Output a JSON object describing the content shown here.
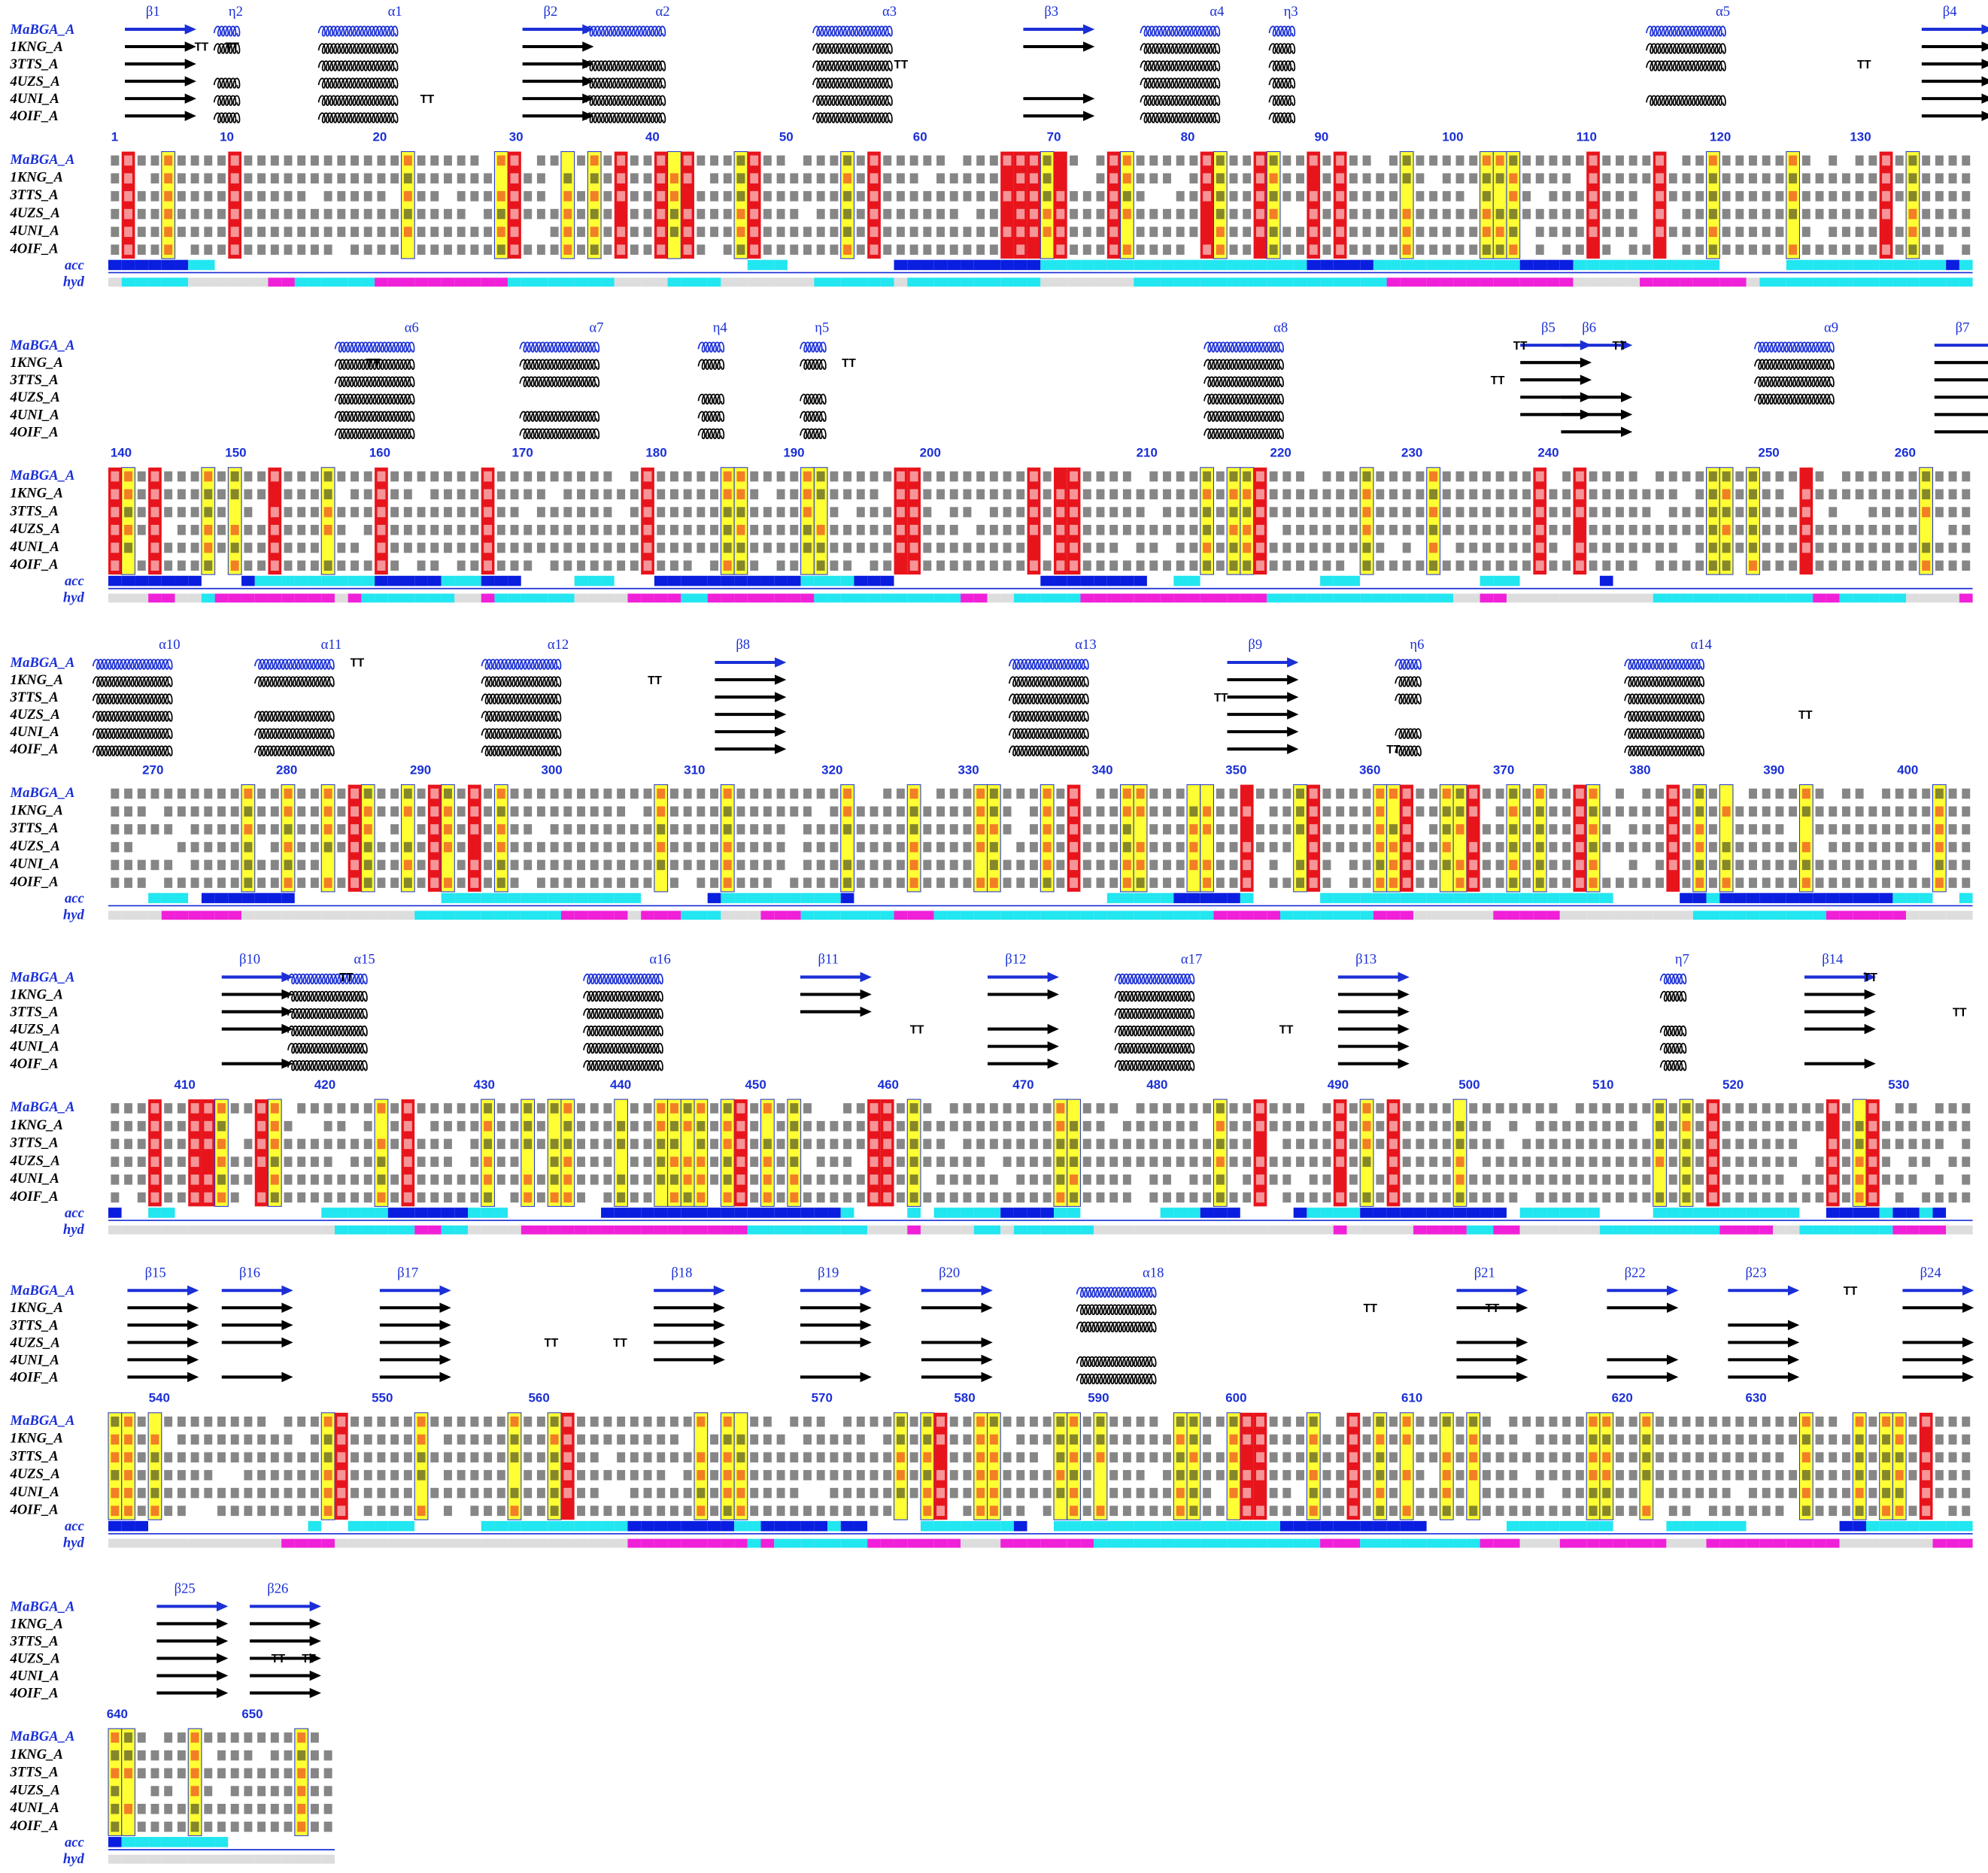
{
  "sequence_names": [
    "MaBGA_A",
    "1KNG_A",
    "3TTS_A",
    "4UZS_A",
    "4UNI_A",
    "4OIF_A"
  ],
  "track_labels": [
    "acc",
    "hyd"
  ],
  "turn_label": "TT",
  "blocks": [
    {
      "ruler": [
        1,
        10,
        20,
        30,
        40,
        50,
        60,
        70,
        80,
        90,
        100,
        110,
        120,
        130
      ],
      "ss_labels": [
        "β1",
        "η2",
        "α1",
        "β2",
        "α2",
        "α3",
        "β3",
        "α4",
        "η3",
        "α5",
        "β4"
      ]
    },
    {
      "ruler": [
        140,
        150,
        160,
        170,
        180,
        190,
        200,
        210,
        220,
        230,
        240,
        250,
        260
      ],
      "ss_labels": [
        "α6",
        "α7",
        "η4",
        "η5",
        "α8",
        "β5",
        "β6",
        "α9",
        "β7"
      ]
    },
    {
      "ruler": [
        270,
        280,
        290,
        300,
        310,
        320,
        330,
        340,
        350,
        360,
        370,
        380,
        390,
        400
      ],
      "ss_labels": [
        "α10",
        "α11",
        "α12",
        "β8",
        "α13",
        "β9",
        "η6",
        "α14"
      ]
    },
    {
      "ruler": [
        410,
        420,
        430,
        440,
        450,
        460,
        470,
        480,
        490,
        500,
        510,
        520,
        530
      ],
      "ss_labels": [
        "β10",
        "α15",
        "α16",
        "β11",
        "β12",
        "α17",
        "β13",
        "η7",
        "β14"
      ]
    },
    {
      "ruler": [
        540,
        550,
        560,
        570,
        580,
        590,
        600,
        610,
        620,
        630
      ],
      "ss_labels": [
        "β15",
        "β16",
        "β17",
        "β18",
        "β19",
        "β20",
        "α18",
        "β21",
        "β22",
        "β23",
        "β24"
      ]
    },
    {
      "ruler": [
        640,
        650
      ],
      "ss_labels": [
        "β25",
        "β26"
      ]
    }
  ]
}
